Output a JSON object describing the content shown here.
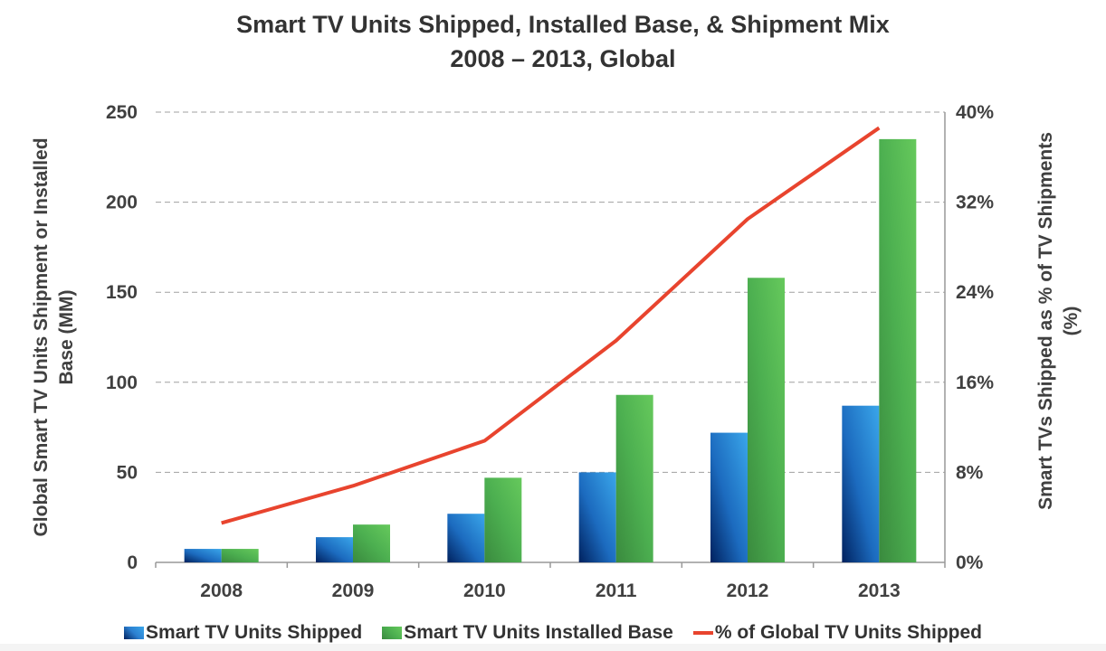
{
  "chart_data": {
    "type": "bar",
    "title": "Smart TV Units Shipped, Installed Base, & Shipment Mix",
    "subtitle": "2008 – 2013, Global",
    "categories": [
      "2008",
      "2009",
      "2010",
      "2011",
      "2012",
      "2013"
    ],
    "ylabel_left": [
      "Global Smart TV Units Shipment or Installed",
      "Base (MM)"
    ],
    "ylabel_right": [
      "Smart TVs Shipped as % of TV Shipments",
      "(%)"
    ],
    "ylim_left": [
      0,
      250
    ],
    "yticks_left": [
      "0",
      "50",
      "100",
      "150",
      "200",
      "250"
    ],
    "ylim_right": [
      0,
      40
    ],
    "yticks_right": [
      "0%",
      "8%",
      "16%",
      "24%",
      "32%",
      "40%"
    ],
    "grid": true,
    "legend_position": "bottom",
    "series": [
      {
        "name": "Smart TV Units Shipped",
        "type": "bar",
        "axis": "left",
        "color": "#2b7fd0",
        "values": [
          7.5,
          14,
          27,
          50,
          72,
          87
        ]
      },
      {
        "name": "Smart TV Units Installed Base",
        "type": "bar",
        "axis": "left",
        "color": "#4caf50",
        "values": [
          7.5,
          21,
          47,
          93,
          158,
          235
        ]
      },
      {
        "name": "% of Global TV Units Shipped",
        "type": "line",
        "axis": "right",
        "color": "#e8442e",
        "values": [
          3.5,
          6.8,
          10.8,
          19.7,
          30.5,
          38.6
        ]
      }
    ]
  }
}
